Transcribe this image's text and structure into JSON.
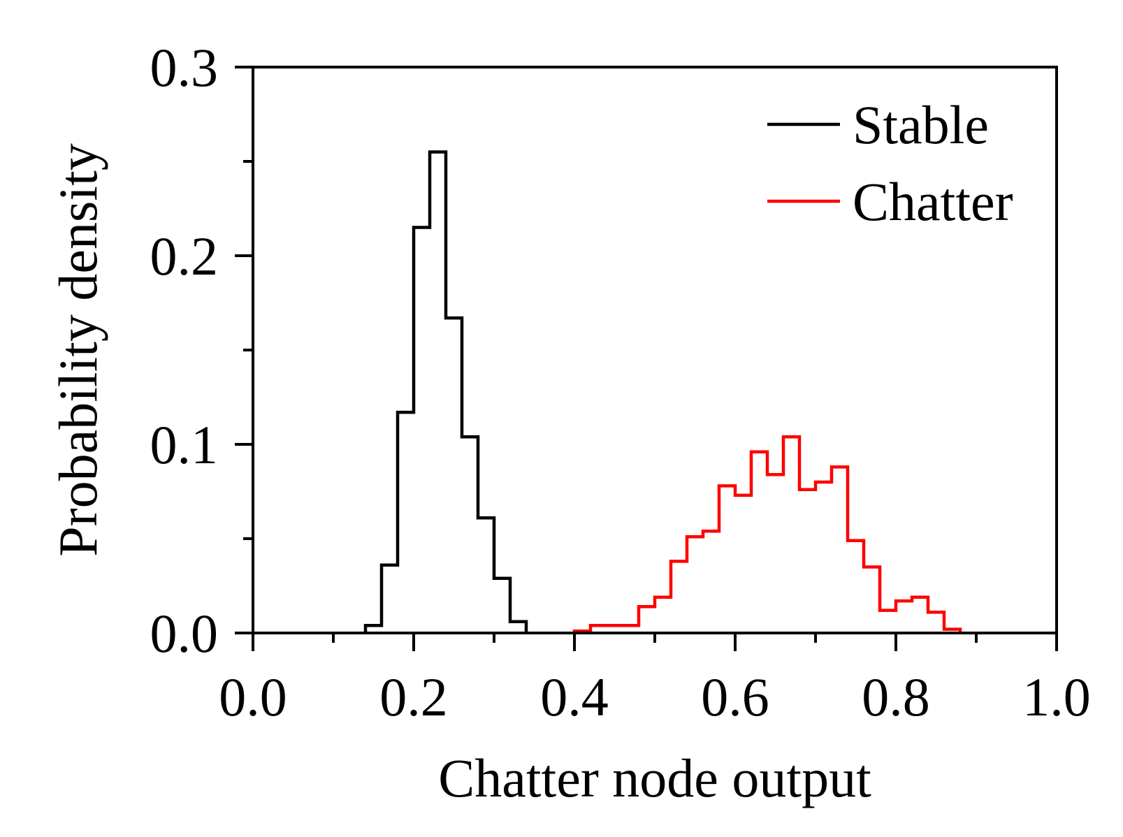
{
  "chart_data": {
    "type": "line",
    "title": "",
    "xlabel": "Chatter node output",
    "ylabel": "Probability density",
    "xlim": [
      0.0,
      1.0
    ],
    "ylim": [
      0.0,
      0.3
    ],
    "x_ticks": [
      "0.0",
      "0.2",
      "0.4",
      "0.6",
      "0.8",
      "1.0"
    ],
    "y_ticks": [
      "0.0",
      "0.1",
      "0.2",
      "0.3"
    ],
    "x_minor_tick_values": [
      0.1,
      0.3,
      0.5,
      0.7,
      0.9
    ],
    "y_minor_tick_values": [
      0.05,
      0.15,
      0.25
    ],
    "grid": false,
    "legend_position": "top-right",
    "bin_width": 0.02,
    "series": [
      {
        "name": "Stable",
        "color": "#000000",
        "bin_starts": [
          0.14,
          0.16,
          0.18,
          0.2,
          0.22,
          0.24,
          0.26,
          0.28,
          0.3,
          0.32
        ],
        "values": [
          0.004,
          0.036,
          0.117,
          0.215,
          0.255,
          0.167,
          0.104,
          0.061,
          0.029,
          0.006
        ]
      },
      {
        "name": "Chatter",
        "color": "#ff0000",
        "bin_starts": [
          0.4,
          0.42,
          0.44,
          0.46,
          0.48,
          0.5,
          0.52,
          0.54,
          0.56,
          0.58,
          0.6,
          0.62,
          0.64,
          0.66,
          0.68,
          0.7,
          0.72,
          0.74,
          0.76,
          0.78,
          0.8,
          0.82,
          0.84,
          0.86
        ],
        "values": [
          0.001,
          0.004,
          0.004,
          0.004,
          0.014,
          0.019,
          0.038,
          0.051,
          0.054,
          0.078,
          0.073,
          0.096,
          0.084,
          0.104,
          0.076,
          0.08,
          0.088,
          0.049,
          0.035,
          0.012,
          0.017,
          0.019,
          0.011,
          0.002
        ]
      }
    ]
  }
}
